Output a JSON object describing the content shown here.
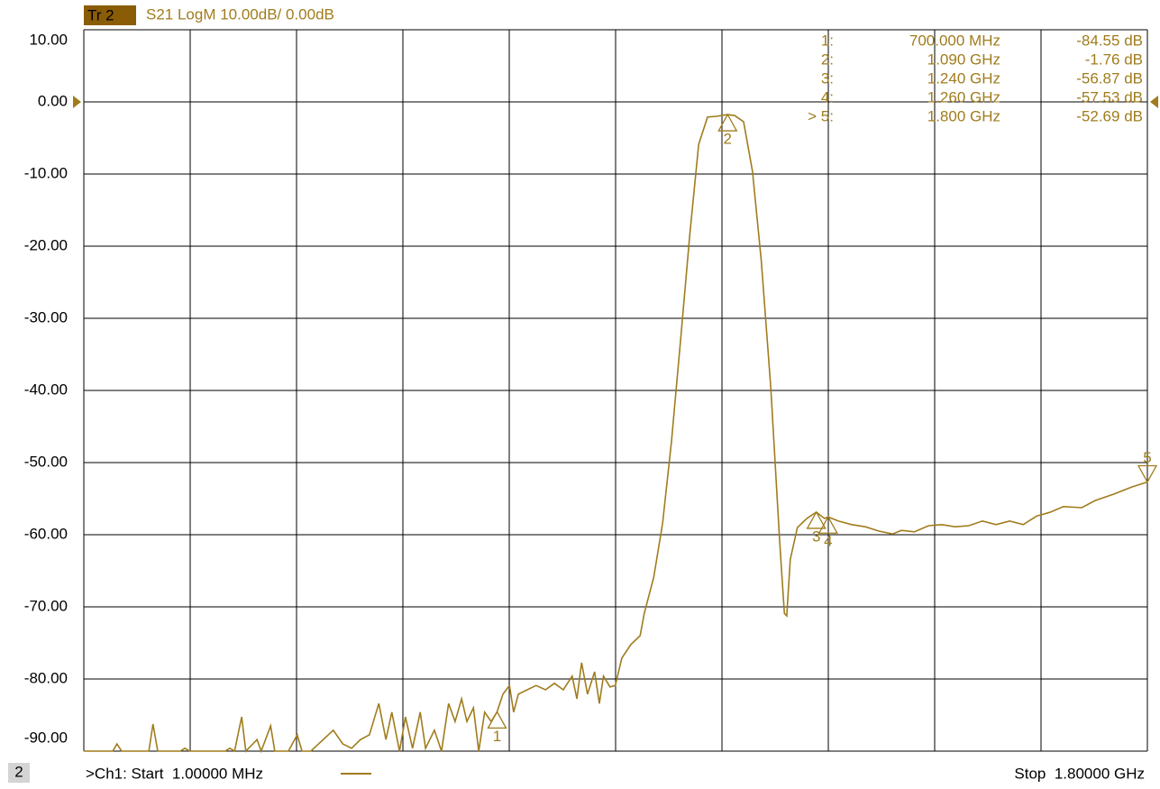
{
  "chart_data": {
    "type": "line",
    "trace_badge": "Tr 2",
    "title": "S21 LogM 10.00dB/ 0.00dB",
    "color": "#a07c1c",
    "grid": true,
    "xlim": [
      1,
      1800
    ],
    "ylim": [
      -90,
      10
    ],
    "yticks": [
      {
        "value": 10,
        "label": "10.00"
      },
      {
        "value": 0,
        "label": "0.00"
      },
      {
        "value": -10,
        "label": "-10.00"
      },
      {
        "value": -20,
        "label": "-20.00"
      },
      {
        "value": -30,
        "label": "-30.00"
      },
      {
        "value": -40,
        "label": "-40.00"
      },
      {
        "value": -50,
        "label": "-50.00"
      },
      {
        "value": -60,
        "label": "-60.00"
      },
      {
        "value": -70,
        "label": "-70.00"
      },
      {
        "value": -80,
        "label": "-80.00"
      },
      {
        "value": -90,
        "label": "-90.00"
      }
    ],
    "reference_level": 0,
    "x": [
      1,
      50,
      57,
      65,
      111,
      118,
      126,
      164,
      172,
      180,
      240,
      248,
      256,
      268,
      275,
      294,
      301,
      317,
      324,
      347,
      362,
      370,
      385,
      423,
      439,
      454,
      469,
      484,
      500,
      512,
      522,
      535,
      545,
      557,
      570,
      579,
      594,
      606,
      618,
      629,
      640,
      649,
      660,
      669,
      679,
      690,
      700,
      710,
      721,
      728,
      736,
      751,
      766,
      782,
      797,
      812,
      827,
      835,
      843,
      853,
      865,
      873,
      880,
      891,
      900,
      911,
      926,
      942,
      949,
      965,
      980,
      995,
      1010,
      1026,
      1041,
      1056,
      1071,
      1090,
      1102,
      1117,
      1132,
      1147,
      1163,
      1178,
      1186,
      1190,
      1196,
      1208,
      1224,
      1240,
      1254,
      1260,
      1277,
      1300,
      1323,
      1346,
      1369,
      1384,
      1406,
      1430,
      1452,
      1475,
      1498,
      1521,
      1544,
      1567,
      1590,
      1613,
      1635,
      1658,
      1689,
      1712,
      1742,
      1773,
      1800
    ],
    "series": [
      {
        "name": "S21",
        "values": [
          -90,
          -90,
          -89,
          -90,
          -90,
          -86.25,
          -90,
          -90,
          -89.6,
          -90,
          -90,
          -89.6,
          -90,
          -85.25,
          -90,
          -88.4,
          -90,
          -86.5,
          -90,
          -90,
          -87.75,
          -90,
          -90,
          -87.1,
          -89,
          -89.6,
          -88.4,
          -87.75,
          -83.4,
          -88.4,
          -84.6,
          -90,
          -85.25,
          -89.6,
          -84.6,
          -89.6,
          -87.1,
          -90,
          -83.4,
          -85.9,
          -82.75,
          -85.9,
          -84,
          -90,
          -84.6,
          -85.9,
          -84.55,
          -82.1,
          -80.9,
          -84.6,
          -82.1,
          -81.5,
          -80.9,
          -81.5,
          -80.6,
          -81.5,
          -79.6,
          -82.75,
          -77.75,
          -82.1,
          -79,
          -83.4,
          -79.6,
          -81.1,
          -80.9,
          -77.1,
          -75.25,
          -74,
          -70.9,
          -65.9,
          -58.4,
          -47.1,
          -33.4,
          -18.4,
          -5.9,
          -2.1,
          -2,
          -1.76,
          -1.9,
          -2.75,
          -9.6,
          -22.1,
          -39.6,
          -60.9,
          -70.9,
          -71.25,
          -63.4,
          -59,
          -57.75,
          -56.87,
          -57.75,
          -57.53,
          -58.1,
          -58.6,
          -58.9,
          -59.5,
          -59.9,
          -59.4,
          -59.6,
          -58.75,
          -58.6,
          -58.9,
          -58.75,
          -58.1,
          -58.6,
          -58.1,
          -58.6,
          -57.4,
          -56.9,
          -56.1,
          -56.25,
          -55.25,
          -54.4,
          -53.4,
          -52.69
        ]
      }
    ],
    "markers": [
      {
        "id": "1",
        "row_label": "1:",
        "x": 700,
        "x_label": "700.000 MHz",
        "y": -84.55,
        "y_label": "-84.55 dB"
      },
      {
        "id": "2",
        "row_label": "2:",
        "x": 1090,
        "x_label": "1.090 GHz",
        "y": -1.76,
        "y_label": "-1.76 dB"
      },
      {
        "id": "3",
        "row_label": "3:",
        "x": 1240,
        "x_label": "1.240 GHz",
        "y": -56.87,
        "y_label": "-56.87 dB"
      },
      {
        "id": "4",
        "row_label": "4:",
        "x": 1260,
        "x_label": "1.260 GHz",
        "y": -57.53,
        "y_label": "-57.53 dB"
      },
      {
        "id": "5",
        "row_label": "> 5:",
        "x": 1800,
        "x_label": "1.800 GHz",
        "y": -52.69,
        "y_label": "-52.69 dB"
      }
    ],
    "channel_number": "2",
    "start_label": ">Ch1: Start  1.00000 MHz",
    "stop_label": "Stop  1.80000 GHz"
  }
}
